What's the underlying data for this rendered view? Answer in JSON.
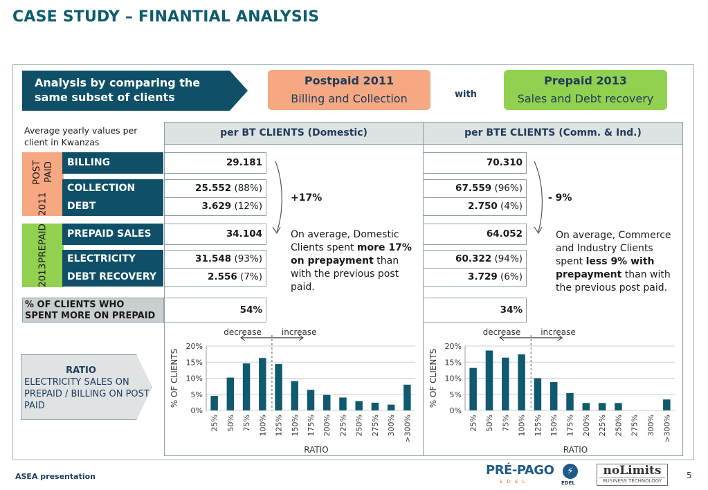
{
  "title": "CASE STUDY – FINANTIAL ANALYSIS",
  "header": {
    "analysis_line1": "Analysis by comparing the",
    "analysis_line2": "same subset of clients",
    "post_title": "Postpaid 2011",
    "post_sub": "Billing and Collection",
    "with": "with",
    "pre_title": "Prepaid 2013",
    "pre_sub": "Sales and Debt recovery"
  },
  "avg_note": "Average yearly values per client in Kwanzas",
  "col_bt": "per BT CLIENTS (Domestic)",
  "col_bte": "per BTE CLIENTS (Comm. & Ind.)",
  "side_post_year": "2011",
  "side_post_label": "POST PAID",
  "side_pre_year": "2013",
  "side_pre_label": "PREPAID",
  "rows": {
    "billing": {
      "label": "BILLING",
      "bt": "29.181",
      "bte": "70.310"
    },
    "collection": {
      "label": "COLLECTION",
      "bt": "25.552",
      "bt_pct": "(88%)",
      "bte": "67.559",
      "bte_pct": "(96%)"
    },
    "debt": {
      "label": "DEBT",
      "bt": "3.629",
      "bt_pct": "(12%)",
      "bte": "2.750",
      "bte_pct": "(4%)"
    },
    "prepaid_sales": {
      "label": "PREPAID SALES",
      "bt": "34.104",
      "bte": "64.052"
    },
    "electricity": {
      "label": "ELECTRICITY",
      "bt": "31.548",
      "bt_pct": "(93%)",
      "bte": "60.322",
      "bte_pct": "(94%)"
    },
    "debt_recovery": {
      "label": "DEBT RECOVERY",
      "bt": "2.556",
      "bt_pct": "(7%)",
      "bte": "3.729",
      "bte_pct": "(6%)"
    },
    "pct_clients": {
      "label1": "% OF CLIENTS WHO",
      "label2": "SPENT MORE ON  PREPAID",
      "bt": "54%",
      "bte": "34%"
    }
  },
  "bt_change": "+17%",
  "bte_change": "- 9%",
  "bt_comment": {
    "p1": "On average, Domestic Clients spent ",
    "b1": "more 17% on prepayment",
    "p2": " than with the previous post paid."
  },
  "bte_comment": {
    "p1": "On average, Commerce and Industry Clients spent ",
    "b1": "less 9% with prepayment",
    "p2": " than with the previous post paid."
  },
  "ratio": {
    "head": "RATIO",
    "body": "ELECTRICITY SALES ON PREPAID / BILLING ON POST PAID"
  },
  "footer": "ASEA presentation",
  "page_number": "5",
  "logos": {
    "prepago": "PRÉ-PAGO",
    "prepago_sub": "EDEL",
    "edel": "EDEL",
    "nolimits": "noLimits",
    "nolimits_sub": "BUSINESS TECHNOLOGY"
  },
  "colors": {
    "teal": "#0f5068",
    "bar": "#0f5a6e",
    "title": "#0f5b6e",
    "postpaid": "#f5a882",
    "prepaid": "#92d050"
  },
  "chart_data": [
    {
      "type": "bar",
      "categories": [
        "25%",
        "50%",
        "75%",
        "100%",
        "125%",
        "150%",
        "175%",
        "200%",
        "225%",
        "250%",
        "275%",
        "300%",
        ">300%"
      ],
      "values": [
        4.5,
        10.2,
        14.6,
        16.3,
        14.4,
        9.1,
        6.4,
        4.8,
        4.0,
        2.9,
        2.4,
        1.8,
        8.0
      ],
      "ylabel": "% OF CLIENTS",
      "xlabel": "RATIO",
      "yticks": [
        "0%",
        "5%",
        "10%",
        "15%",
        "20%"
      ],
      "ylim": [
        0,
        20
      ],
      "grid": true,
      "annotations": [
        "decrease",
        "increase"
      ]
    },
    {
      "type": "bar",
      "categories": [
        "25%",
        "50%",
        "75%",
        "100%",
        "125%",
        "150%",
        "175%",
        "200%",
        "225%",
        "250%",
        "275%",
        "300%",
        ">300%"
      ],
      "values": [
        13.2,
        18.6,
        16.4,
        17.4,
        10.0,
        8.8,
        5.4,
        2.3,
        2.3,
        2.3,
        0,
        0,
        3.4
      ],
      "ylabel": "% OF CLIENTS",
      "xlabel": "RATIO",
      "yticks": [
        "0%",
        "5%",
        "10%",
        "15%",
        "20%"
      ],
      "ylim": [
        0,
        20
      ],
      "grid": true,
      "annotations": [
        "decrease",
        "increase"
      ]
    }
  ]
}
